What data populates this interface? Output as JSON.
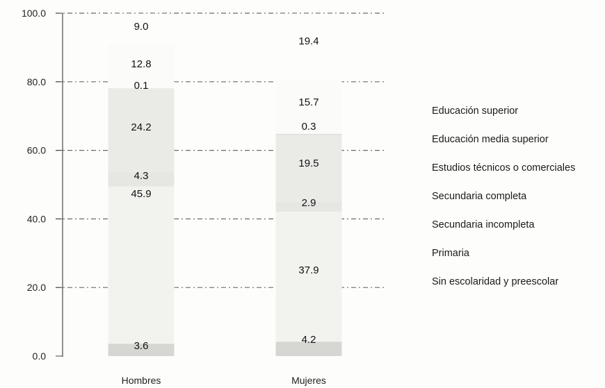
{
  "chart_data": {
    "type": "bar",
    "stacked": true,
    "title": "",
    "xlabel": "",
    "ylabel": "",
    "ylim": [
      0,
      100
    ],
    "yticks": [
      "0.0",
      "20.0",
      "40.0",
      "60.0",
      "80.0",
      "100.0"
    ],
    "grid": true,
    "legend_position": "right",
    "categories": [
      "Hombres",
      "Mujeres"
    ],
    "series": [
      {
        "name": "Sin escolaridad y preescolar",
        "values": [
          3.6,
          4.2
        ],
        "labels": [
          "3.6",
          "4.2"
        ],
        "color": "#d6d6d3"
      },
      {
        "name": "Primaria",
        "values": [
          45.9,
          37.9
        ],
        "labels": [
          "45.9",
          "37.9"
        ],
        "color": "#f2f2ef"
      },
      {
        "name": "Secundaria incompleta",
        "values": [
          4.3,
          2.9
        ],
        "labels": [
          "4.3",
          "2.9"
        ],
        "color": "#e6e6e3"
      },
      {
        "name": "Secundaria completa",
        "values": [
          24.2,
          19.5
        ],
        "labels": [
          "24.2",
          "19.5"
        ],
        "color": "#eaeae7"
      },
      {
        "name": "Estudios técnicos o comerciales",
        "values": [
          0.1,
          0.3
        ],
        "labels": [
          "0.1",
          "0.3"
        ],
        "color": "#dededb"
      },
      {
        "name": "Educación media superior",
        "values": [
          12.8,
          15.7
        ],
        "labels": [
          "12.8",
          "15.7"
        ],
        "color": "#fbfbf9"
      },
      {
        "name": "Educación superior",
        "values": [
          9.0,
          19.4
        ],
        "labels": [
          "9.0",
          "19.4"
        ],
        "color": "#fdfdfb"
      }
    ]
  }
}
